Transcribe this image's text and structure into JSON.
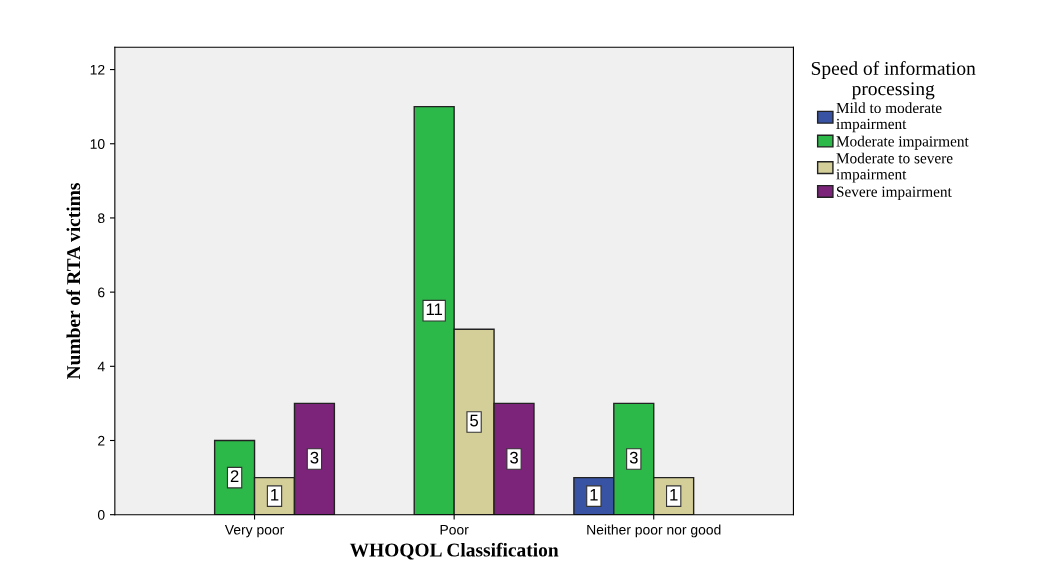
{
  "chart_data": {
    "type": "bar",
    "categories": [
      "Very poor",
      "Poor",
      "Neither poor nor good"
    ],
    "series": [
      {
        "name": "Mild to moderate\nimpairment",
        "color": "#3953a4",
        "values": [
          null,
          null,
          1
        ]
      },
      {
        "name": "Moderate impairment",
        "color": "#2db84a",
        "values": [
          2,
          11,
          3
        ]
      },
      {
        "name": "Moderate to severe\nimpairment",
        "color": "#d4cf98",
        "values": [
          1,
          5,
          1
        ]
      },
      {
        "name": "Severe impairment",
        "color": "#7b2479",
        "values": [
          3,
          3,
          null
        ]
      }
    ],
    "xlabel": "WHOQOL Classification",
    "ylabel": "Number of RTA victims",
    "legend_title": "Speed of information\nprocessing",
    "ylim": [
      0,
      12.6
    ],
    "yticks": [
      0,
      2,
      4,
      6,
      8,
      10,
      12
    ],
    "data_labels": true,
    "legend": "right",
    "grid": false
  }
}
